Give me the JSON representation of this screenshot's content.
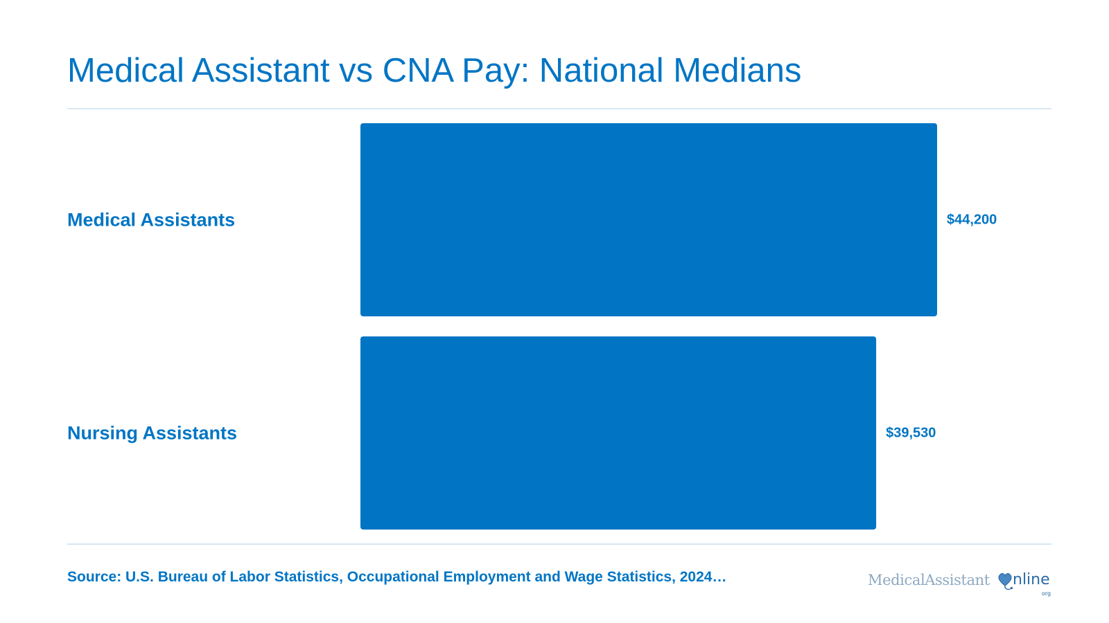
{
  "title": "Medical Assistant vs CNA Pay: National Medians",
  "source": "Source: U.S. Bureau of Labor Statistics, Occupational Employment and Wage Statistics, 2024…",
  "brand": {
    "name_part1": "MedicalAssistant",
    "name_part2": "nline",
    "tld": "org",
    "icon": "heart-stethoscope-icon"
  },
  "colors": {
    "accent": "#0175c4",
    "bar": "#0175c4",
    "divider": "#d6e8f2",
    "brand_light": "#8ea9c2",
    "brand_dark": "#2b6aa6"
  },
  "chart_data": {
    "type": "bar",
    "orientation": "horizontal",
    "title": "Medical Assistant vs CNA Pay: National Medians",
    "categories": [
      "Medical Assistants",
      "Nursing Assistants"
    ],
    "values": [
      44200,
      39530
    ],
    "value_labels": [
      "$44,200",
      "$39,530"
    ],
    "xlim": [
      0,
      44200
    ],
    "grid": false,
    "legend": "none"
  }
}
